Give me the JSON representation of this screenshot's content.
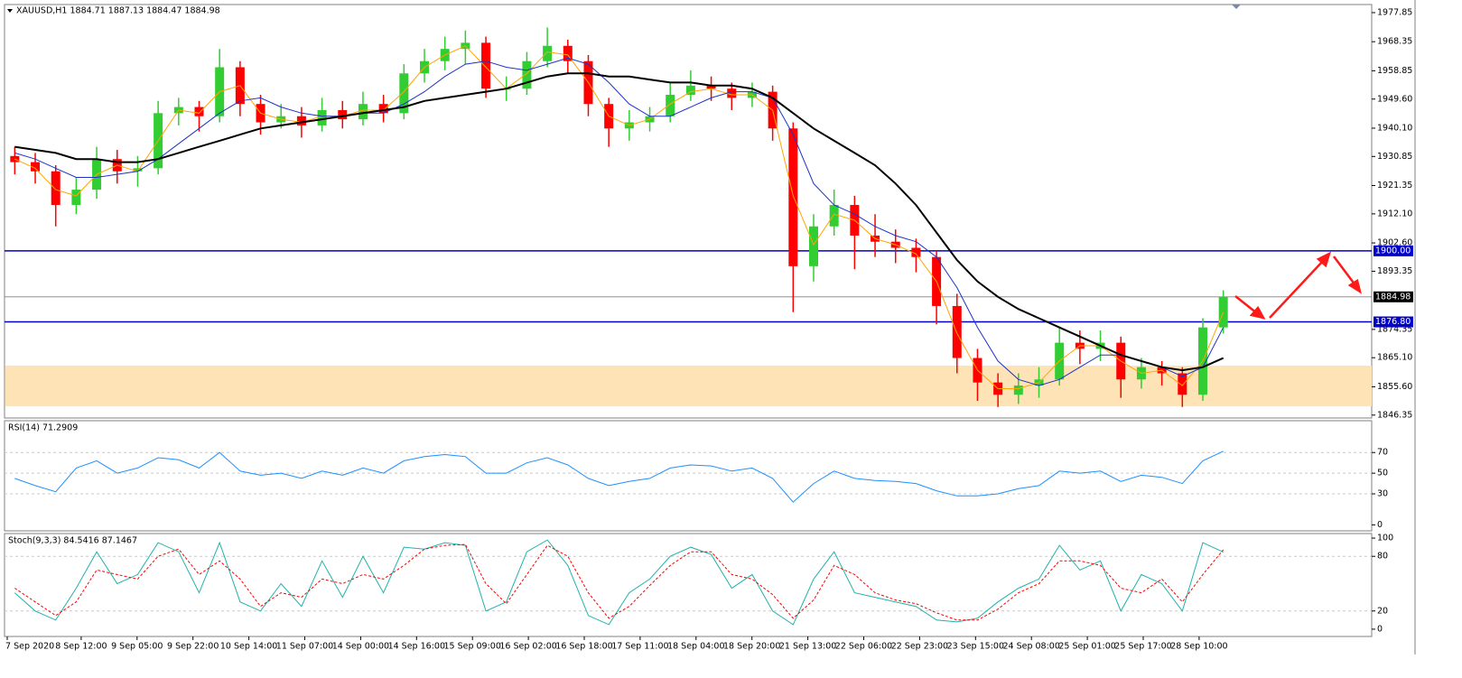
{
  "chart_data": [
    {
      "type": "candlestick",
      "title": "XAUUSD,H1 1884.71 1887.13 1884.47 1884.98",
      "open": [
        1931,
        1929,
        1926,
        1915,
        1920,
        1930,
        1926,
        1927,
        1945,
        1947,
        1944,
        1960,
        1948,
        1942,
        1944,
        1941,
        1946,
        1943,
        1948,
        1945,
        1958,
        1962,
        1966,
        1968,
        1953,
        1953,
        1962,
        1967,
        1962,
        1948,
        1940,
        1942,
        1944,
        1951,
        1954,
        1953,
        1950,
        1952,
        1940,
        1895,
        1908,
        1915,
        1905,
        1903,
        1901,
        1898,
        1882,
        1865,
        1857,
        1853,
        1856,
        1858,
        1870,
        1868,
        1870,
        1858,
        1862,
        1860,
        1853,
        1875
      ],
      "high": [
        1934,
        1932,
        1928,
        1924,
        1934,
        1933,
        1931,
        1949,
        1950,
        1949,
        1966,
        1962,
        1951,
        1948,
        1947,
        1950,
        1949,
        1952,
        1951,
        1961,
        1966,
        1970,
        1972,
        1970,
        1957,
        1965,
        1973,
        1969,
        1964,
        1950,
        1946,
        1947,
        1955,
        1959,
        1957,
        1955,
        1955,
        1954,
        1942,
        1912,
        1920,
        1918,
        1912,
        1907,
        1904,
        1900,
        1886,
        1868,
        1860,
        1860,
        1862,
        1875,
        1874,
        1874,
        1872,
        1865,
        1864,
        1862,
        1878,
        1887.13
      ],
      "low": [
        1925,
        1922,
        1908,
        1912,
        1917,
        1922,
        1921,
        1925,
        1941,
        1939,
        1942,
        1944,
        1938,
        1940,
        1937,
        1939,
        1940,
        1941,
        1942,
        1943,
        1955,
        1959,
        1961,
        1950,
        1949,
        1951,
        1960,
        1958,
        1944,
        1934,
        1936,
        1939,
        1942,
        1949,
        1949,
        1946,
        1947,
        1936,
        1880,
        1890,
        1905,
        1894,
        1898,
        1896,
        1893,
        1876,
        1860,
        1851,
        1849,
        1850,
        1852,
        1856,
        1863,
        1864,
        1852,
        1855,
        1856,
        1849,
        1851,
        1873
      ],
      "close": [
        1929,
        1926,
        1915,
        1920,
        1930,
        1926,
        1927,
        1945,
        1947,
        1944,
        1960,
        1948,
        1942,
        1944,
        1941,
        1946,
        1943,
        1948,
        1945,
        1958,
        1962,
        1966,
        1968,
        1953,
        1953,
        1962,
        1967,
        1962,
        1948,
        1940,
        1942,
        1944,
        1951,
        1954,
        1953,
        1950,
        1952,
        1940,
        1895,
        1908,
        1915,
        1905,
        1903,
        1901,
        1898,
        1882,
        1865,
        1857,
        1853,
        1856,
        1858,
        1870,
        1868,
        1870,
        1858,
        1862,
        1860,
        1853,
        1875,
        1884.98
      ],
      "up_color": "#32cd32",
      "down_color": "#ff0000",
      "ylim": [
        1845.4,
        1980.5
      ],
      "yticks": [
        1977.85,
        1968.35,
        1958.85,
        {
          "value": 1949.6,
          "label": "1949.60"
        },
        {
          "value": 1940.1,
          "label": "1940.10"
        },
        1930.85,
        1921.35,
        {
          "value": 1912.1,
          "label": "1912.10"
        },
        {
          "value": 1902.6,
          "label": "1902.60"
        },
        1893.35,
        1874.35,
        {
          "value": 1865.1,
          "label": "1865.10"
        },
        {
          "value": 1855.6,
          "label": "1855.60"
        },
        1846.35
      ],
      "lines": [
        {
          "color": "#ffa500",
          "width": 1,
          "values": [
            1930,
            1927,
            1920,
            1918,
            1925,
            1928,
            1926,
            1936,
            1946,
            1945,
            1952,
            1954,
            1945,
            1943,
            1942,
            1944,
            1944,
            1946,
            1946,
            1952,
            1960,
            1964,
            1967,
            1960,
            1953,
            1958,
            1965,
            1964,
            1955,
            1944,
            1941,
            1943,
            1948,
            1952,
            1953,
            1951,
            1951,
            1946,
            1918,
            1902,
            1912,
            1910,
            1904,
            1902,
            1899,
            1890,
            1873,
            1861,
            1855,
            1855,
            1857,
            1864,
            1869,
            1869,
            1864,
            1860,
            1861,
            1856,
            1864,
            1880
          ]
        },
        {
          "color": "#1e32c8",
          "width": 1,
          "values": [
            1932,
            1930,
            1927,
            1924,
            1924,
            1925,
            1926,
            1930,
            1935,
            1940,
            1945,
            1949,
            1950,
            1947,
            1945,
            1944,
            1944,
            1945,
            1945,
            1948,
            1952,
            1957,
            1961,
            1962,
            1960,
            1959,
            1961,
            1963,
            1961,
            1955,
            1948,
            1944,
            1944,
            1947,
            1950,
            1952,
            1952,
            1950,
            1938,
            1922,
            1915,
            1912,
            1908,
            1905,
            1903,
            1898,
            1888,
            1875,
            1864,
            1858,
            1856,
            1858,
            1862,
            1866,
            1866,
            1864,
            1862,
            1859,
            1862,
            1875
          ]
        },
        {
          "color": "#000000",
          "width": 2,
          "values": [
            1934,
            1933,
            1932,
            1930,
            1930,
            1929,
            1929,
            1930,
            1932,
            1934,
            1936,
            1938,
            1940,
            1941,
            1942,
            1943,
            1944,
            1945,
            1946,
            1947,
            1949,
            1950,
            1951,
            1952,
            1953,
            1955,
            1957,
            1958,
            1958,
            1957,
            1957,
            1956,
            1955,
            1955,
            1954,
            1954,
            1953,
            1950,
            1945,
            1940,
            1936,
            1932,
            1928,
            1922,
            1915,
            1906,
            1897,
            1890,
            1885,
            1881,
            1878,
            1875,
            1872,
            1869,
            1866,
            1864,
            1862,
            1861,
            1862,
            1865
          ]
        }
      ],
      "levels": [
        {
          "value": 1900,
          "label": "1900.00",
          "color": "#0000cd"
        },
        {
          "value": 1876.8,
          "label": "1876.80",
          "color": "#0000cd"
        }
      ],
      "current": {
        "value": 1884.98,
        "label": "1884.98",
        "color": "#808080"
      },
      "zone": {
        "range": [
          1849.2,
          1862.5
        ],
        "color": "#fde3b5"
      },
      "x_labels": [
        "7 Sep 2020",
        "8 Sep 12:00",
        "9 Sep 05:00",
        "9 Sep 22:00",
        "10 Sep 14:00",
        "11 Sep 07:00",
        "14 Sep 00:00",
        "14 Sep 16:00",
        "15 Sep 09:00",
        "16 Sep 02:00",
        "16 Sep 18:00",
        "17 Sep 11:00",
        "18 Sep 04:00",
        "18 Sep 20:00",
        "21 Sep 13:00",
        "22 Sep 06:00",
        "22 Sep 23:00",
        "23 Sep 15:00",
        "24 Sep 08:00",
        "25 Sep 01:00",
        "25 Sep 17:00",
        "28 Sep 10:00"
      ]
    },
    {
      "type": "line",
      "title": "RSI(14) 71.2909",
      "ylim": [
        -5.8,
        100.8
      ],
      "yticks": [
        70,
        50,
        30,
        0
      ],
      "grid": [
        70,
        50,
        30
      ],
      "series": [
        {
          "color": "#1e90ff",
          "values": [
            45,
            38,
            32,
            55,
            62,
            50,
            55,
            65,
            63,
            55,
            70,
            52,
            48,
            50,
            45,
            52,
            48,
            55,
            50,
            62,
            66,
            68,
            66,
            50,
            50,
            60,
            65,
            58,
            45,
            38,
            42,
            45,
            55,
            58,
            57,
            52,
            55,
            45,
            22,
            40,
            52,
            45,
            43,
            42,
            40,
            33,
            28,
            28,
            30,
            35,
            38,
            52,
            50,
            52,
            42,
            48,
            46,
            40,
            62,
            71.29
          ]
        }
      ]
    },
    {
      "type": "line",
      "title": "Stoch(9,3,3) 84.5416 87.1467",
      "ylim": [
        -8,
        105
      ],
      "yticks": [
        100,
        80,
        20,
        0
      ],
      "grid": [
        80,
        20
      ],
      "series": [
        {
          "color": "#20b2aa",
          "values": [
            40,
            20,
            10,
            45,
            85,
            50,
            60,
            95,
            85,
            40,
            95,
            30,
            20,
            50,
            25,
            75,
            35,
            80,
            40,
            90,
            88,
            95,
            92,
            20,
            30,
            85,
            98,
            70,
            15,
            5,
            40,
            55,
            80,
            90,
            82,
            45,
            60,
            20,
            5,
            55,
            85,
            40,
            35,
            30,
            25,
            10,
            8,
            12,
            30,
            45,
            55,
            92,
            65,
            75,
            20,
            60,
            50,
            20,
            95,
            84.54
          ]
        },
        {
          "color": "#ff0000",
          "dashed": true,
          "values": [
            45,
            30,
            15,
            30,
            65,
            60,
            55,
            80,
            88,
            60,
            75,
            55,
            25,
            40,
            35,
            55,
            50,
            60,
            55,
            70,
            88,
            92,
            93,
            50,
            28,
            60,
            92,
            80,
            40,
            12,
            25,
            48,
            70,
            85,
            85,
            60,
            55,
            38,
            12,
            32,
            70,
            60,
            40,
            32,
            28,
            18,
            10,
            10,
            22,
            40,
            50,
            75,
            75,
            70,
            45,
            40,
            55,
            30,
            60,
            87.15
          ]
        }
      ]
    }
  ]
}
